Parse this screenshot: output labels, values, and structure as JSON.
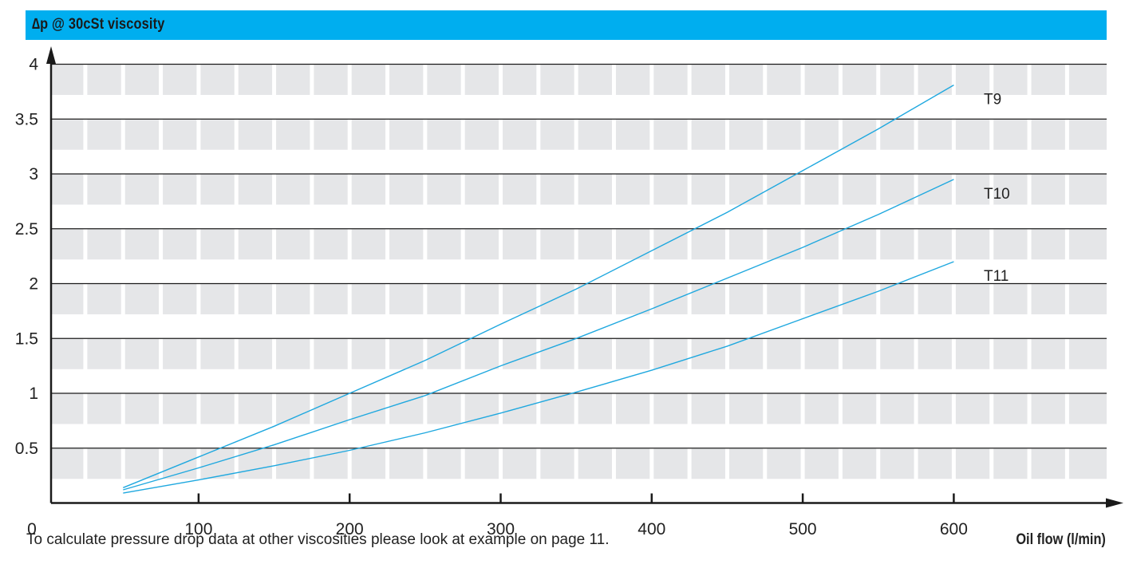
{
  "header": {
    "title": "∆p  @ 30cSt viscosity"
  },
  "footer": {
    "note": "To calculate pressure drop data at other viscosities please look at example on page 11.",
    "xlabel": "Oil flow (l/min)"
  },
  "colors": {
    "header": "#00aeef",
    "curve": "#1fa8df",
    "band": "#e5e6e8",
    "axis": "#1a1a1a"
  },
  "chart_data": {
    "type": "line",
    "title": "∆p  @ 30cSt viscosity",
    "xlabel": "Oil flow (l/min)",
    "ylabel": "",
    "xlim": [
      0,
      700
    ],
    "ylim": [
      0,
      4
    ],
    "x_ticks": [
      0,
      100,
      200,
      300,
      400,
      500,
      600
    ],
    "x_tick_labels": [
      "0",
      "100",
      "200",
      "300",
      "400",
      "500",
      "600"
    ],
    "y_ticks": [
      0.5,
      1,
      1.5,
      2,
      2.5,
      3,
      3.5,
      4
    ],
    "y_tick_labels": [
      "0.5",
      "1",
      "1.5",
      "2",
      "2.5",
      "3",
      "3.5",
      "4"
    ],
    "grid": true,
    "series": [
      {
        "name": "T9",
        "x": [
          50,
          100,
          150,
          200,
          250,
          300,
          350,
          400,
          450,
          500,
          550,
          600
        ],
        "y": [
          0.14,
          0.42,
          0.7,
          1.0,
          1.3,
          1.63,
          1.95,
          2.3,
          2.65,
          3.03,
          3.41,
          3.81
        ]
      },
      {
        "name": "T10",
        "x": [
          50,
          100,
          150,
          200,
          250,
          300,
          350,
          400,
          450,
          500,
          550,
          600
        ],
        "y": [
          0.12,
          0.32,
          0.53,
          0.76,
          0.98,
          1.25,
          1.5,
          1.77,
          2.05,
          2.33,
          2.63,
          2.95
        ]
      },
      {
        "name": "T11",
        "x": [
          50,
          100,
          150,
          200,
          250,
          300,
          350,
          400,
          450,
          500,
          550,
          600
        ],
        "y": [
          0.09,
          0.21,
          0.34,
          0.48,
          0.64,
          0.82,
          1.01,
          1.21,
          1.43,
          1.68,
          1.93,
          2.2
        ]
      }
    ]
  }
}
